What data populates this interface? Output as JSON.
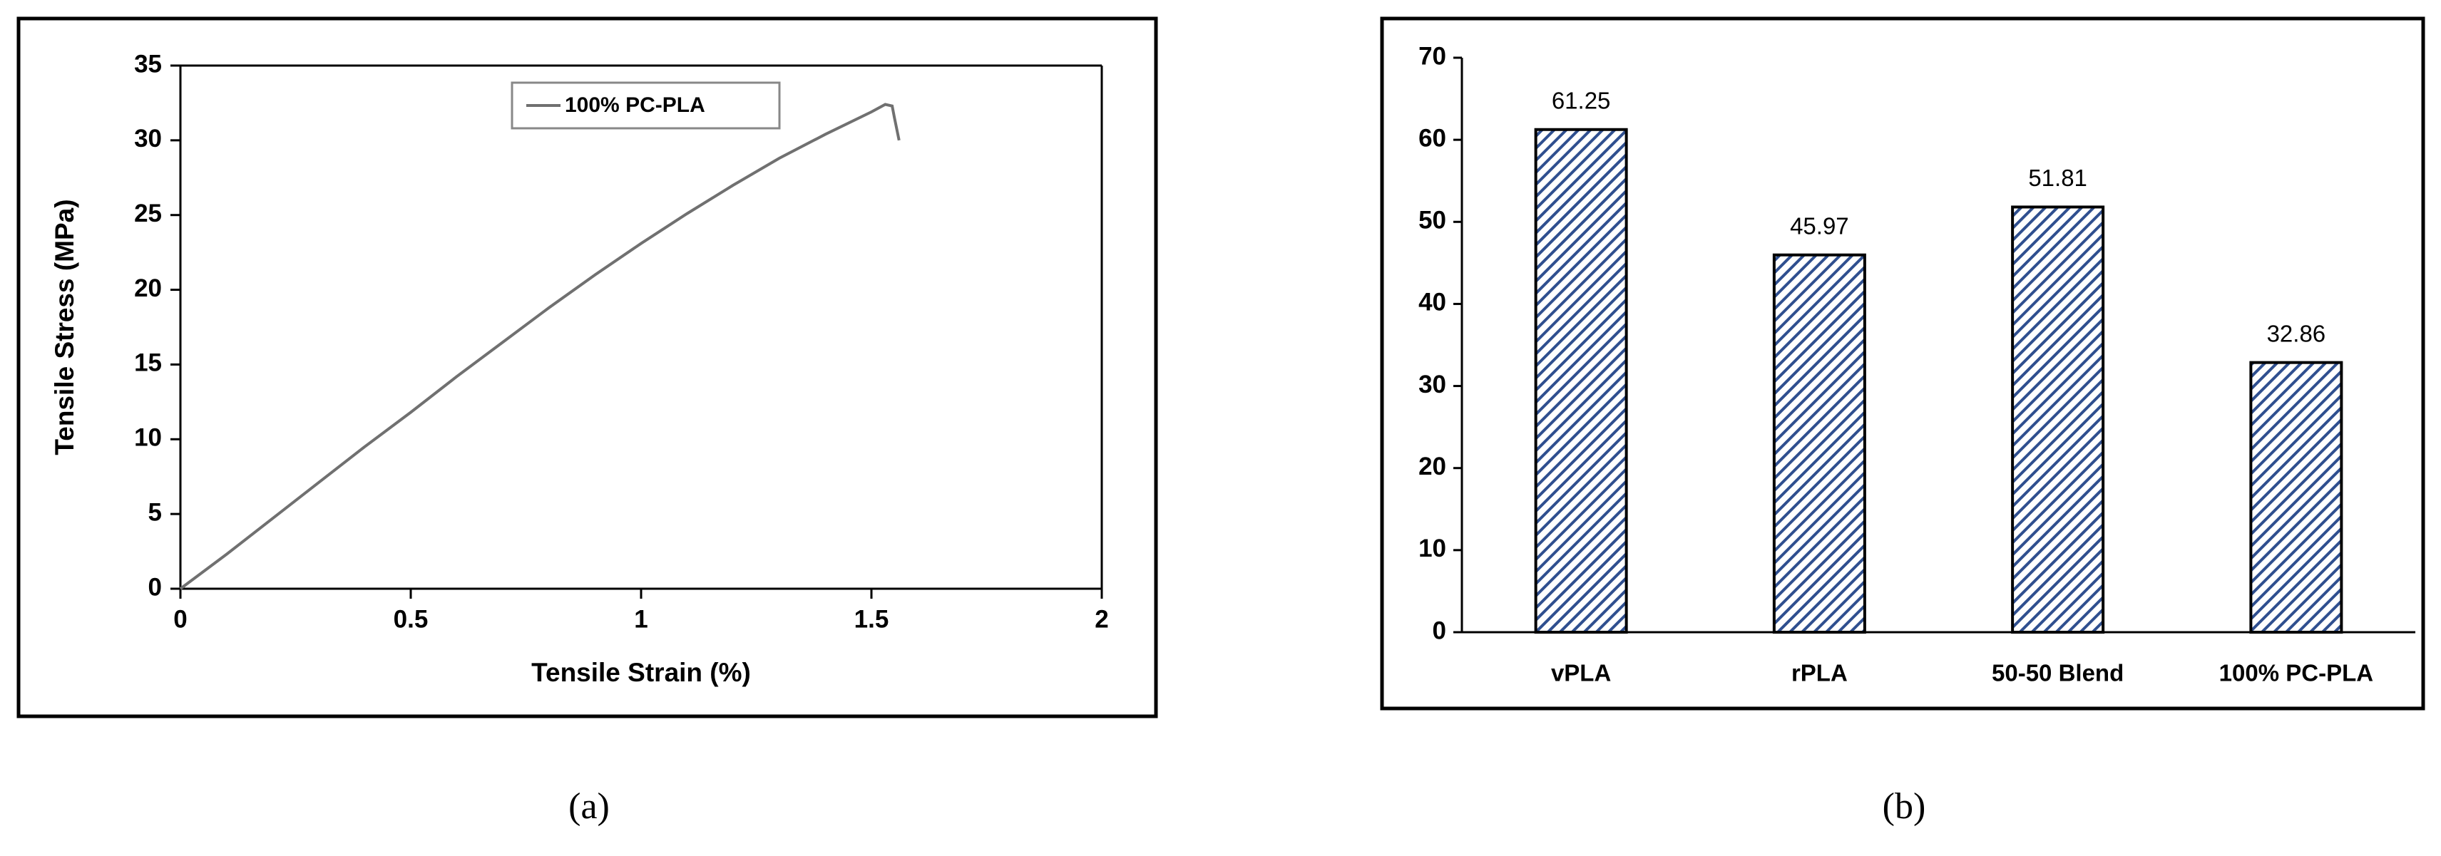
{
  "chart_data": [
    {
      "type": "line",
      "caption": "(a)",
      "x_label": "Tensile Strain (%)",
      "y_label": "Tensile Stress (MPa)",
      "xlim": [
        0,
        2
      ],
      "xticks": [
        0,
        0.5,
        1,
        1.5,
        2
      ],
      "ylim": [
        0,
        35
      ],
      "yticks": [
        0,
        5,
        10,
        15,
        20,
        25,
        30,
        35
      ],
      "legend": "top-center",
      "x": [
        0,
        0.1,
        0.2,
        0.3,
        0.4,
        0.5,
        0.6,
        0.7,
        0.8,
        0.9,
        1.0,
        1.1,
        1.2,
        1.3,
        1.4,
        1.5,
        1.53,
        1.545,
        1.55,
        1.56
      ],
      "series": [
        {
          "name": "100% PC-PLA",
          "color": "#707070",
          "values": [
            0,
            2.3,
            4.7,
            7.1,
            9.5,
            11.8,
            14.2,
            16.5,
            18.8,
            21,
            23.1,
            25.1,
            27,
            28.8,
            30.4,
            31.9,
            32.4,
            32.3,
            31.5,
            30
          ]
        }
      ]
    },
    {
      "type": "bar",
      "caption": "(b)",
      "categories": [
        "vPLA",
        "rPLA",
        "50-50 Blend",
        "100% PC-PLA"
      ],
      "values": [
        61.25,
        45.97,
        51.81,
        32.86
      ],
      "color": "#2f4f8f",
      "hatch": true,
      "ylim": [
        0,
        70
      ],
      "yticks": [
        0,
        10,
        20,
        30,
        40,
        50,
        60,
        70
      ]
    }
  ]
}
